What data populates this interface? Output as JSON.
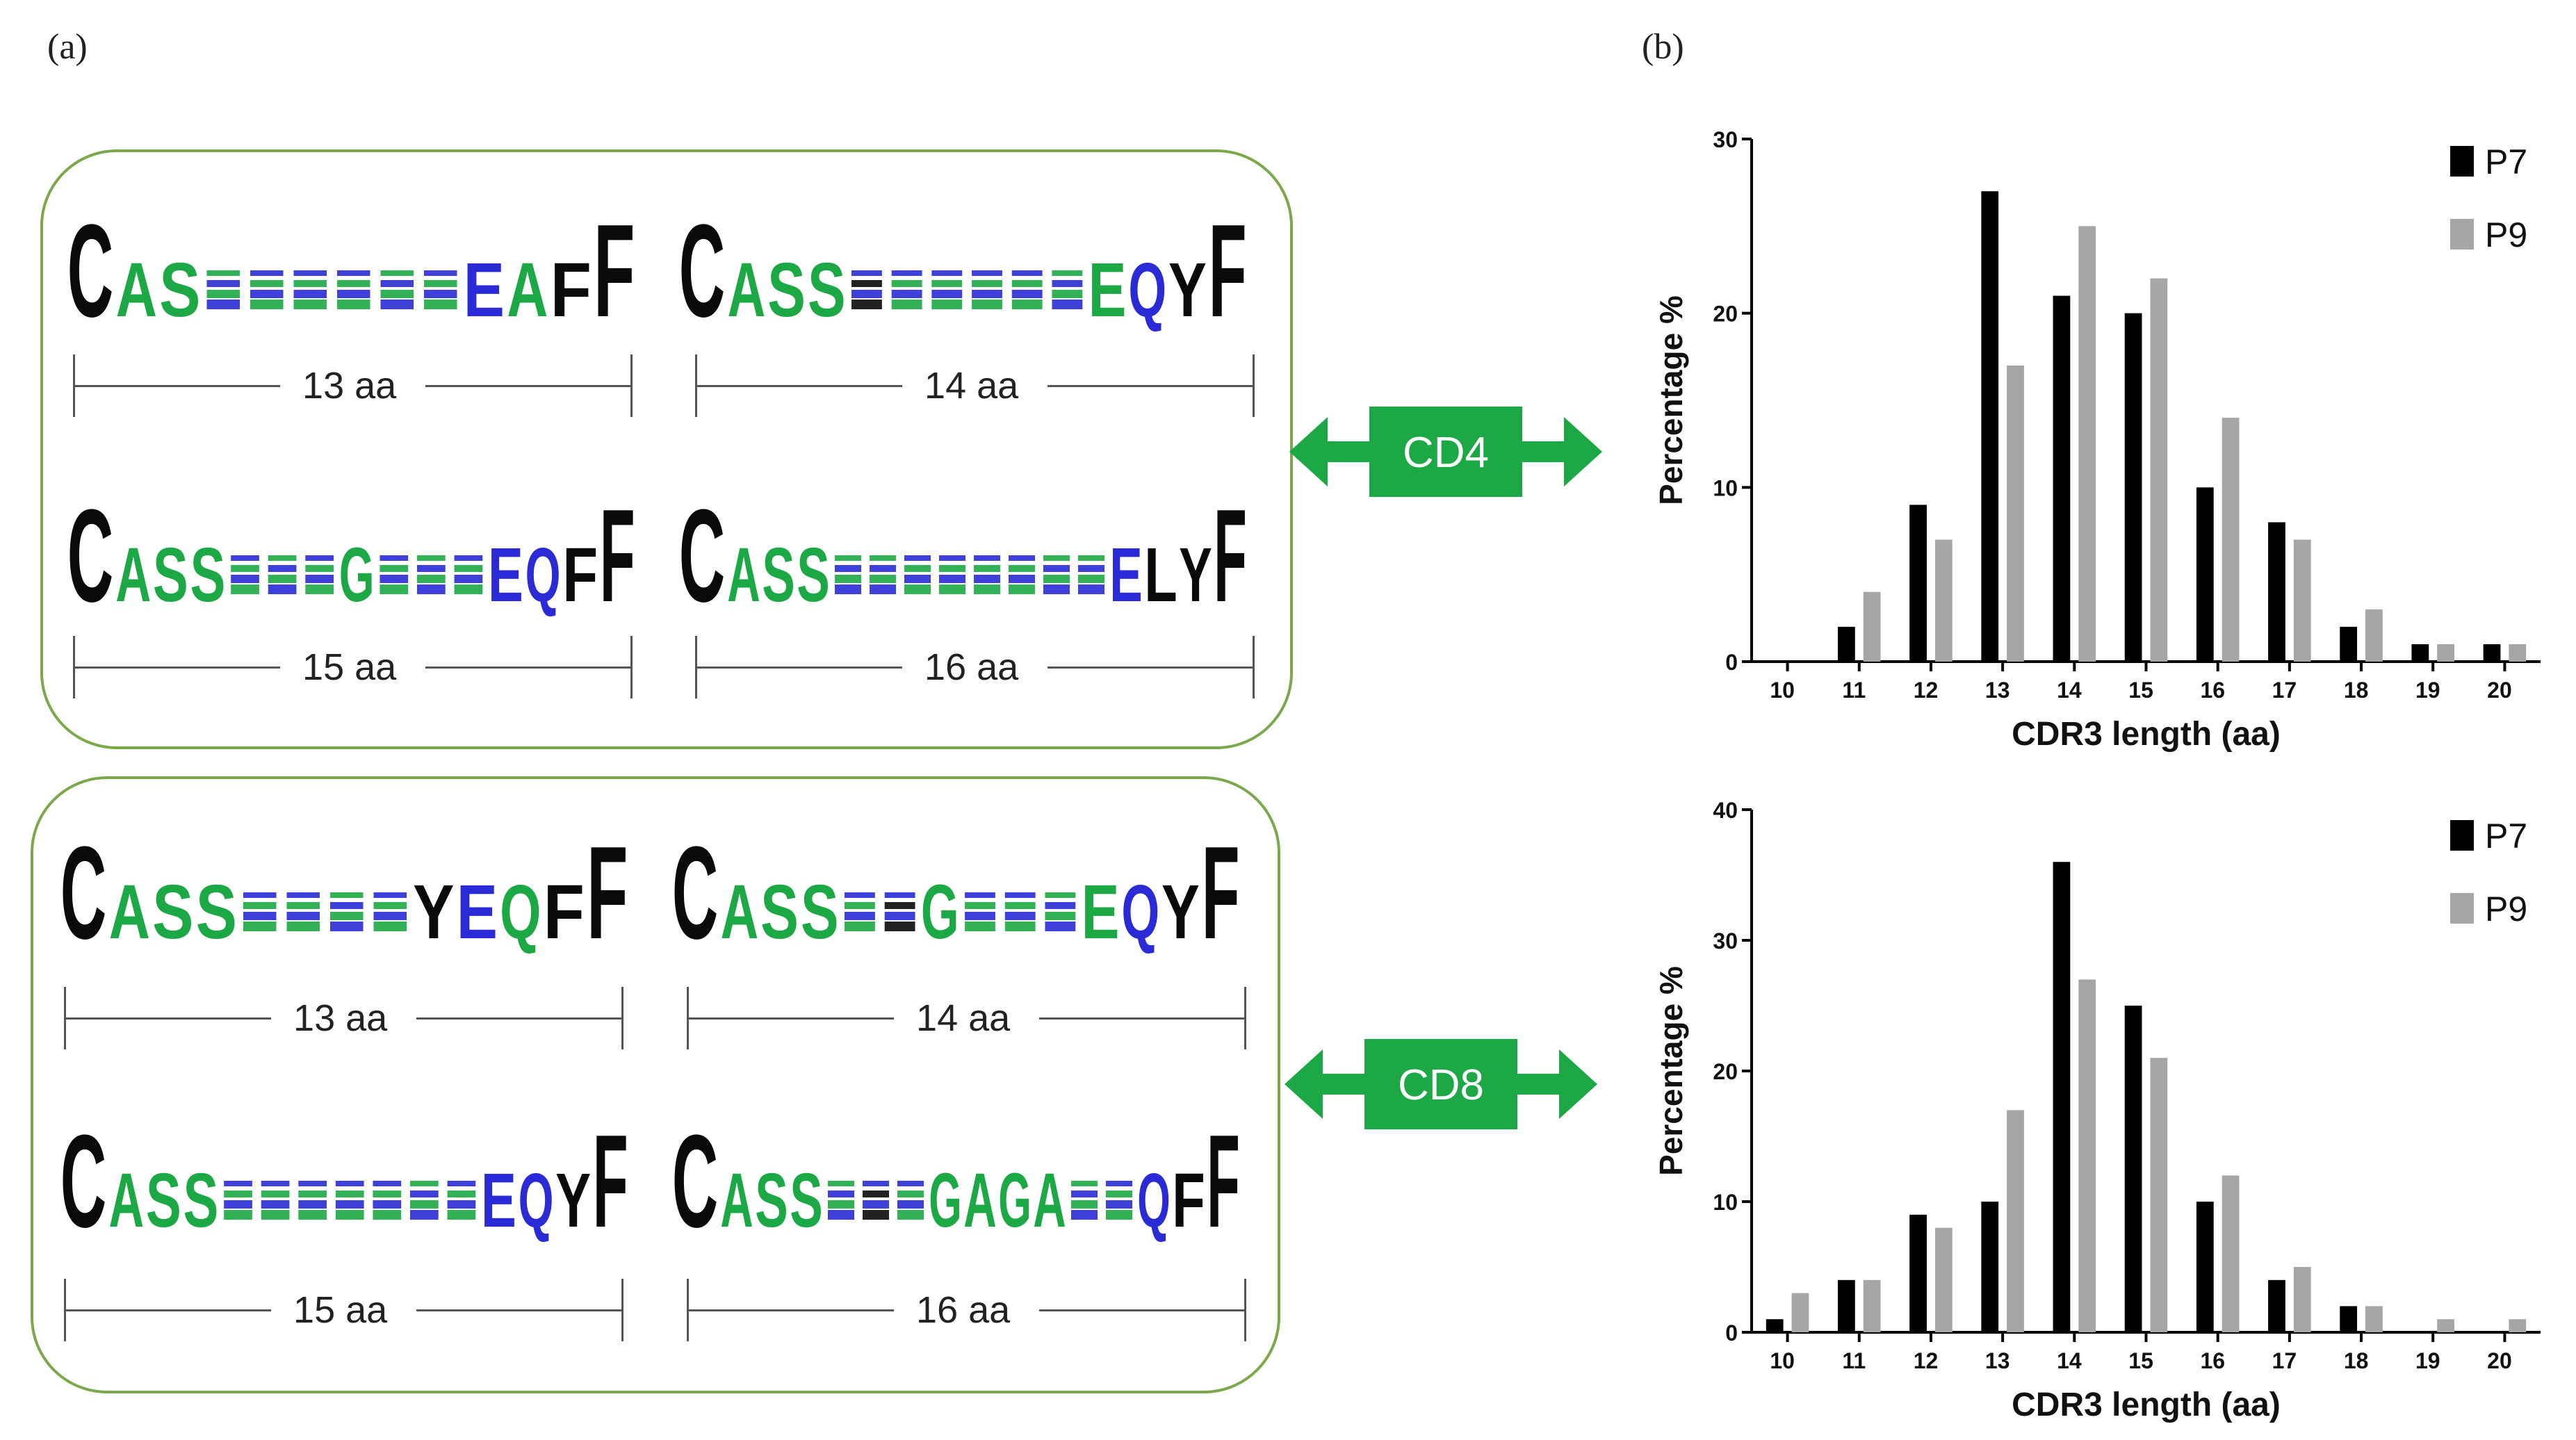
{
  "panel_a_label": "(a)",
  "panel_b_label": "(b)",
  "colors": {
    "green": "#1ca844",
    "blue": "#2a2ad6",
    "black": "#0a0a0a",
    "box": "#7aa84a",
    "p7": "#000000",
    "p9": "#a6a6a6"
  },
  "groups": [
    {
      "name": "CD4",
      "label": "CD4",
      "logos": [
        {
          "length": "13 aa",
          "big": [
            "C",
            "A",
            "S",
            "",
            "",
            "",
            "",
            "",
            "",
            "E",
            "A",
            "F",
            "F"
          ],
          "colorset": [
            "k",
            "g",
            "g",
            "b",
            "g",
            "g",
            "g",
            "b",
            "g",
            "b",
            "g",
            "k",
            "k"
          ]
        },
        {
          "length": "14 aa",
          "big": [
            "C",
            "A",
            "S",
            "S",
            "",
            "",
            "",
            "",
            "",
            "",
            "E",
            "Q",
            "Y",
            "F"
          ],
          "colorset": [
            "k",
            "g",
            "g",
            "g",
            "k",
            "g",
            "g",
            "g",
            "g",
            "b",
            "g",
            "b",
            "k",
            "k"
          ]
        },
        {
          "length": "15 aa",
          "big": [
            "C",
            "A",
            "S",
            "S",
            "",
            "",
            "",
            "G",
            "",
            "",
            "",
            "E",
            "Q",
            "F",
            "F"
          ],
          "colorset": [
            "k",
            "g",
            "g",
            "g",
            "g",
            "b",
            "g",
            "g",
            "g",
            "b",
            "g",
            "b",
            "b",
            "k",
            "k"
          ]
        },
        {
          "length": "16 aa",
          "big": [
            "C",
            "A",
            "S",
            "S",
            "",
            "",
            "",
            "",
            "",
            "",
            "",
            "",
            "E",
            "L",
            "Y",
            "F"
          ],
          "colorset": [
            "k",
            "g",
            "g",
            "g",
            "b",
            "b",
            "g",
            "g",
            "g",
            "g",
            "b",
            "b",
            "b",
            "k",
            "k",
            "k"
          ]
        }
      ]
    },
    {
      "name": "CD8",
      "label": "CD8",
      "logos": [
        {
          "length": "13 aa",
          "big": [
            "C",
            "A",
            "S",
            "S",
            "",
            "",
            "",
            "",
            "Y",
            "E",
            "Q",
            "F",
            "F"
          ],
          "colorset": [
            "k",
            "g",
            "g",
            "g",
            "g",
            "g",
            "b",
            "g",
            "k",
            "b",
            "g",
            "k",
            "k"
          ]
        },
        {
          "length": "14 aa",
          "big": [
            "C",
            "A",
            "S",
            "S",
            "",
            "",
            "G",
            "",
            "",
            "",
            "E",
            "Q",
            "Y",
            "F"
          ],
          "colorset": [
            "k",
            "g",
            "g",
            "g",
            "g",
            "k",
            "g",
            "g",
            "g",
            "b",
            "g",
            "b",
            "k",
            "k"
          ]
        },
        {
          "length": "15 aa",
          "big": [
            "C",
            "A",
            "S",
            "S",
            "",
            "",
            "",
            "",
            "",
            "",
            "",
            "E",
            "Q",
            "Y",
            "F"
          ],
          "colorset": [
            "k",
            "g",
            "g",
            "g",
            "g",
            "g",
            "g",
            "g",
            "g",
            "b",
            "g",
            "b",
            "b",
            "k",
            "k"
          ]
        },
        {
          "length": "16 aa",
          "big": [
            "C",
            "A",
            "S",
            "S",
            "",
            "",
            "",
            "G",
            "A",
            "G",
            "A",
            "",
            "",
            "Q",
            "F",
            "F"
          ],
          "colorset": [
            "k",
            "g",
            "g",
            "g",
            "b",
            "k",
            "g",
            "g",
            "g",
            "g",
            "g",
            "b",
            "g",
            "b",
            "k",
            "k"
          ]
        }
      ]
    }
  ],
  "chart_data": [
    {
      "type": "bar",
      "title": "",
      "xlabel": "CDR3 length (aa)",
      "ylabel": "Percentage %",
      "categories": [
        "10",
        "11",
        "12",
        "13",
        "14",
        "15",
        "16",
        "17",
        "18",
        "19",
        "20"
      ],
      "ylim": [
        0,
        30
      ],
      "yticks": [
        "0",
        "10",
        "20",
        "30"
      ],
      "series": [
        {
          "name": "P7",
          "values": [
            0,
            2,
            9,
            27,
            21,
            20,
            10,
            8,
            2,
            1,
            1
          ]
        },
        {
          "name": "P9",
          "values": [
            0,
            4,
            7,
            17,
            25,
            22,
            14,
            7,
            3,
            1,
            1
          ]
        }
      ],
      "legend": "top-right"
    },
    {
      "type": "bar",
      "title": "",
      "xlabel": "CDR3 length (aa)",
      "ylabel": "Percentage %",
      "categories": [
        "10",
        "11",
        "12",
        "13",
        "14",
        "15",
        "16",
        "17",
        "18",
        "19",
        "20"
      ],
      "ylim": [
        0,
        40
      ],
      "yticks": [
        "0",
        "10",
        "20",
        "30",
        "40"
      ],
      "series": [
        {
          "name": "P7",
          "values": [
            1,
            4,
            9,
            10,
            36,
            25,
            10,
            4,
            2,
            0,
            0
          ]
        },
        {
          "name": "P9",
          "values": [
            3,
            4,
            8,
            17,
            27,
            21,
            12,
            5,
            2,
            1,
            1
          ]
        }
      ],
      "legend": "top-right"
    }
  ]
}
